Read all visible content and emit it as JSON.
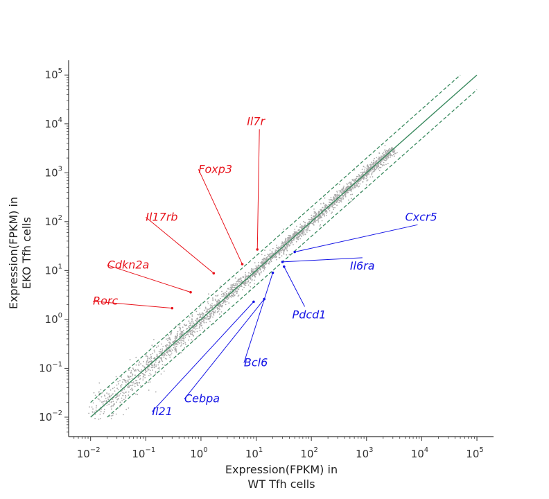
{
  "chart_data": {
    "type": "scatter",
    "title": "",
    "xlabel": [
      "Expression(FPKM) in",
      "WT Tfh cells"
    ],
    "ylabel": [
      "Expression(FPKM)  in",
      "EKO Tfh cells"
    ],
    "xscale": "log",
    "yscale": "log",
    "xlim": [
      0.004,
      200000
    ],
    "ylim": [
      0.004,
      200000
    ],
    "x_ticks": [
      0.01,
      0.1,
      1,
      10,
      100,
      1000,
      10000,
      100000
    ],
    "y_ticks": [
      0.01,
      0.1,
      1,
      10,
      100,
      1000,
      10000,
      100000
    ],
    "tick_base": "10",
    "tick_exponents": [
      "−2",
      "−1",
      "0",
      "1",
      "2",
      "3",
      "4",
      "5"
    ],
    "grid": false,
    "point_color": "#a9a9a9",
    "diagonal": {
      "type": "y=x",
      "color": "#3a8a5f",
      "range": [
        0.01,
        100000
      ]
    },
    "fold_lines": [
      {
        "factor": 2,
        "style": "dashed",
        "color": "#3a8a5f",
        "range": [
          0.01,
          50000
        ]
      },
      {
        "factor": 0.5,
        "style": "dashed",
        "color": "#3a8a5f",
        "range": [
          0.02,
          100000
        ]
      }
    ],
    "annotations": [
      {
        "label": "Il7r",
        "color": "#e8141c",
        "x": 10.5,
        "y": 27,
        "label_x": 6.8,
        "label_y": 9500
      },
      {
        "label": "Foxp3",
        "color": "#e8141c",
        "x": 5.6,
        "y": 13.5,
        "label_x": 0.9,
        "label_y": 1000
      },
      {
        "label": "Il17rb",
        "color": "#e8141c",
        "x": 1.7,
        "y": 8.8,
        "label_x": 0.1,
        "label_y": 105
      },
      {
        "label": "Cdkn2a",
        "color": "#e8141c",
        "x": 0.65,
        "y": 3.6,
        "label_x": 0.02,
        "label_y": 11
      },
      {
        "label": "Rorc",
        "color": "#e8141c",
        "x": 0.3,
        "y": 1.7,
        "label_x": 0.011,
        "label_y": 2
      },
      {
        "label": "Cxcr5",
        "color": "#1414e6",
        "x": 50,
        "y": 24,
        "label_x": 5000,
        "label_y": 105
      },
      {
        "label": "Il6ra",
        "color": "#1414e6",
        "x": 30,
        "y": 15,
        "label_x": 500,
        "label_y": 10.5
      },
      {
        "label": "Pdcd1",
        "color": "#1414e6",
        "x": 32,
        "y": 12,
        "label_x": 45,
        "label_y": 1.05
      },
      {
        "label": "Bcl6",
        "color": "#1414e6",
        "x": 20,
        "y": 9,
        "label_x": 6,
        "label_y": 0.11
      },
      {
        "label": "Cebpa",
        "color": "#1414e6",
        "x": 14,
        "y": 2.6,
        "label_x": 0.5,
        "label_y": 0.02
      },
      {
        "label": "Il21",
        "color": "#1414e6",
        "x": 9,
        "y": 2.3,
        "label_x": 0.13,
        "label_y": 0.011
      }
    ]
  }
}
